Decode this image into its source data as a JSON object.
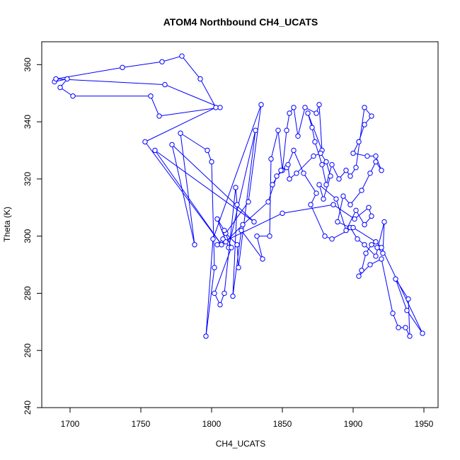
{
  "chart_data": {
    "type": "line",
    "title": "ATOM4 Northbound CH4_UCATS",
    "xlabel": "CH4_UCATS",
    "ylabel": "Theta (K)",
    "xlim": [
      1680,
      1960
    ],
    "ylim": [
      240,
      368
    ],
    "xticks": [
      1700,
      1750,
      1800,
      1850,
      1900,
      1950
    ],
    "yticks": [
      240,
      260,
      280,
      300,
      320,
      340,
      360
    ],
    "grid": false,
    "legend": "none",
    "series": [
      {
        "color": "#0000ff",
        "markers": "open-circle",
        "points": [
          [
            1689,
            354
          ],
          [
            1698,
            355
          ],
          [
            1693,
            352
          ],
          [
            1702,
            349
          ],
          [
            1757,
            349
          ],
          [
            1763,
            342
          ],
          [
            1806,
            345
          ],
          [
            1767,
            353
          ],
          [
            1690,
            355
          ],
          [
            1737,
            359
          ],
          [
            1765,
            361
          ],
          [
            1779,
            363
          ],
          [
            1792,
            355
          ],
          [
            1803,
            345
          ],
          [
            1753,
            333
          ],
          [
            1807,
            297
          ],
          [
            1760,
            330
          ],
          [
            1830,
            305
          ],
          [
            1772,
            332
          ],
          [
            1788,
            297
          ],
          [
            1778,
            336
          ],
          [
            1797,
            330
          ],
          [
            1800,
            326
          ],
          [
            1802,
            289
          ],
          [
            1796,
            265
          ],
          [
            1801,
            299
          ],
          [
            1835,
            346
          ],
          [
            1826,
            312
          ],
          [
            1810,
            301
          ],
          [
            1818,
            297
          ],
          [
            1819,
            289
          ],
          [
            1831,
            337
          ],
          [
            1812,
            296
          ],
          [
            1804,
            306
          ],
          [
            1809,
            302
          ],
          [
            1814,
            296
          ],
          [
            1802,
            280
          ],
          [
            1806,
            276
          ],
          [
            1809,
            280
          ],
          [
            1817,
            317
          ],
          [
            1818,
            311
          ],
          [
            1815,
            279
          ],
          [
            1821,
            302
          ],
          [
            1836,
            292
          ],
          [
            1832,
            300
          ],
          [
            1841,
            300
          ],
          [
            1842,
            327
          ],
          [
            1847,
            337
          ],
          [
            1850,
            323
          ],
          [
            1853,
            337
          ],
          [
            1855,
            343
          ],
          [
            1858,
            345
          ],
          [
            1861,
            335
          ],
          [
            1866,
            345
          ],
          [
            1874,
            343
          ],
          [
            1876,
            346
          ],
          [
            1878,
            330
          ],
          [
            1868,
            343
          ],
          [
            1871,
            338
          ],
          [
            1873,
            333
          ],
          [
            1878,
            325
          ],
          [
            1881,
            318
          ],
          [
            1885,
            325
          ],
          [
            1890,
            320
          ],
          [
            1895,
            323
          ],
          [
            1898,
            321
          ],
          [
            1902,
            324
          ],
          [
            1908,
            345
          ],
          [
            1913,
            342
          ],
          [
            1908,
            339
          ],
          [
            1904,
            333
          ],
          [
            1900,
            329
          ],
          [
            1910,
            328
          ],
          [
            1916,
            328
          ],
          [
            1920,
            323
          ],
          [
            1916,
            326
          ],
          [
            1912,
            322
          ],
          [
            1906,
            316
          ],
          [
            1898,
            311
          ],
          [
            1893,
            314
          ],
          [
            1889,
            305
          ],
          [
            1898,
            303
          ],
          [
            1903,
            299
          ],
          [
            1908,
            297
          ],
          [
            1916,
            293
          ],
          [
            1922,
            305
          ],
          [
            1921,
            294
          ],
          [
            1917,
            296
          ],
          [
            1913,
            297
          ],
          [
            1909,
            294
          ],
          [
            1906,
            288
          ],
          [
            1904,
            286
          ],
          [
            1912,
            290
          ],
          [
            1920,
            292
          ],
          [
            1928,
            273
          ],
          [
            1932,
            268
          ],
          [
            1937,
            268
          ],
          [
            1940,
            265
          ],
          [
            1939,
            278
          ],
          [
            1930,
            285
          ],
          [
            1938,
            274
          ],
          [
            1949,
            266
          ],
          [
            1920,
            296
          ],
          [
            1916,
            298
          ],
          [
            1900,
            303
          ],
          [
            1885,
            299
          ],
          [
            1880,
            300
          ],
          [
            1870,
            311
          ],
          [
            1874,
            315
          ],
          [
            1865,
            322
          ],
          [
            1858,
            330
          ],
          [
            1853,
            324
          ],
          [
            1846,
            321
          ],
          [
            1840,
            312
          ],
          [
            1822,
            304
          ],
          [
            1810,
            298
          ],
          [
            1808,
            299
          ],
          [
            1804,
            297
          ],
          [
            1850,
            308
          ],
          [
            1886,
            311
          ],
          [
            1901,
            306
          ],
          [
            1911,
            310
          ],
          [
            1913,
            307
          ],
          [
            1908,
            304
          ],
          [
            1902,
            309
          ],
          [
            1895,
            302
          ],
          [
            1888,
            313
          ],
          [
            1876,
            318
          ],
          [
            1879,
            313
          ],
          [
            1884,
            321
          ],
          [
            1881,
            326
          ],
          [
            1877,
            329
          ],
          [
            1872,
            328
          ],
          [
            1860,
            322
          ],
          [
            1855,
            320
          ],
          [
            1854,
            325
          ],
          [
            1849,
            323
          ],
          [
            1843,
            318
          ]
        ]
      }
    ]
  }
}
